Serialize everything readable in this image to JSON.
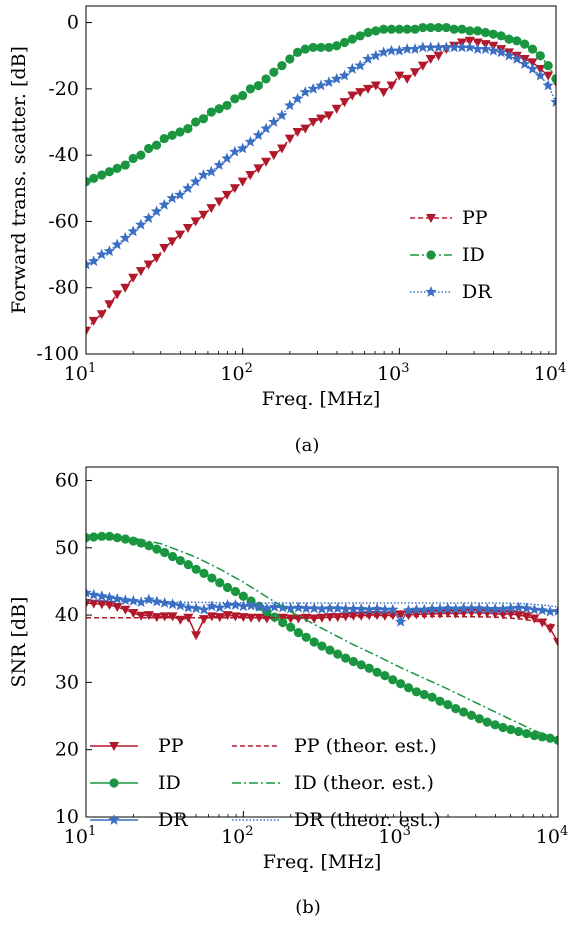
{
  "colors": {
    "PP": "#b2182b",
    "ID": "#1a9641",
    "DR": "#3a6fc4"
  },
  "chart_data": [
    {
      "type": "line",
      "caption": "(a)",
      "xlabel": "Freq. [MHz]",
      "ylabel": "Forward trans. scatter. [dB]",
      "xscale": "log",
      "xlim": [
        10,
        10000
      ],
      "ylim": [
        -100,
        5
      ],
      "xticks": [
        {
          "v": 10,
          "b": "10",
          "e": "1"
        },
        {
          "v": 100,
          "b": "10",
          "e": "2"
        },
        {
          "v": 1000,
          "b": "10",
          "e": "3"
        },
        {
          "v": 10000,
          "b": "10",
          "e": "4"
        }
      ],
      "yticks": [
        {
          "v": 0,
          "t": "0"
        },
        {
          "v": -20,
          "t": "-20"
        },
        {
          "v": -40,
          "t": "-40"
        },
        {
          "v": -60,
          "t": "-60"
        },
        {
          "v": -80,
          "t": "-80"
        },
        {
          "v": -100,
          "t": "-100"
        }
      ],
      "legend_position": "lower right",
      "series": [
        {
          "name": "PP",
          "color_key": "PP",
          "marker": "triangle-down",
          "dash": "5,3",
          "x": [
            10,
            11.2,
            12.6,
            14.1,
            15.8,
            17.8,
            20,
            22.4,
            25.1,
            28.2,
            31.6,
            35.5,
            39.8,
            44.7,
            50.1,
            56.2,
            63.1,
            70.8,
            79.4,
            89.1,
            100,
            112,
            126,
            141,
            158,
            178,
            200,
            224,
            251,
            282,
            316,
            355,
            398,
            447,
            501,
            562,
            631,
            708,
            794,
            891,
            1000,
            1122,
            1259,
            1413,
            1585,
            1778,
            1995,
            2239,
            2512,
            2818,
            3162,
            3548,
            3981,
            4467,
            5012,
            5623,
            6310,
            7079,
            7943,
            8913,
            10000
          ],
          "y": [
            -93,
            -90,
            -88,
            -85,
            -82,
            -80,
            -77,
            -75,
            -73,
            -71,
            -68,
            -66,
            -64,
            -62,
            -60,
            -58,
            -56,
            -54,
            -52,
            -50,
            -48,
            -46,
            -44,
            -42,
            -40,
            -38,
            -35,
            -33,
            -32,
            -30,
            -29,
            -28,
            -26,
            -24,
            -22,
            -21,
            -20,
            -19,
            -21,
            -19,
            -16,
            -17,
            -15,
            -13,
            -11,
            -10,
            -8,
            -7,
            -6,
            -5.5,
            -6,
            -6.5,
            -7,
            -8,
            -9,
            -10,
            -11,
            -12,
            -14,
            -16,
            -18
          ]
        },
        {
          "name": "ID",
          "color_key": "ID",
          "marker": "circle",
          "dash": "9,3,2,3",
          "x": [
            10,
            11.2,
            12.6,
            14.1,
            15.8,
            17.8,
            20,
            22.4,
            25.1,
            28.2,
            31.6,
            35.5,
            39.8,
            44.7,
            50.1,
            56.2,
            63.1,
            70.8,
            79.4,
            89.1,
            100,
            112,
            126,
            141,
            158,
            178,
            200,
            224,
            251,
            282,
            316,
            355,
            398,
            447,
            501,
            562,
            631,
            708,
            794,
            891,
            1000,
            1122,
            1259,
            1413,
            1585,
            1778,
            1995,
            2239,
            2512,
            2818,
            3162,
            3548,
            3981,
            4467,
            5012,
            5623,
            6310,
            7079,
            7943,
            8913,
            10000
          ],
          "y": [
            -48,
            -47,
            -46,
            -45,
            -44,
            -43,
            -41,
            -40,
            -38,
            -37,
            -35,
            -34,
            -33,
            -32,
            -30,
            -29,
            -27,
            -26,
            -25,
            -23,
            -22,
            -20,
            -19,
            -17,
            -15,
            -13,
            -11,
            -9,
            -8,
            -7.5,
            -7.5,
            -7.5,
            -7,
            -6,
            -5,
            -4,
            -3,
            -2.5,
            -2,
            -2,
            -2,
            -2,
            -2,
            -1.5,
            -1.5,
            -1.5,
            -1.5,
            -2,
            -2,
            -2.5,
            -2.5,
            -3,
            -3.5,
            -4,
            -5,
            -5.5,
            -6.5,
            -8,
            -10,
            -13,
            -17
          ]
        },
        {
          "name": "DR",
          "color_key": "DR",
          "marker": "star",
          "dash": "1.5,2",
          "x": [
            10,
            11.2,
            12.6,
            14.1,
            15.8,
            17.8,
            20,
            22.4,
            25.1,
            28.2,
            31.6,
            35.5,
            39.8,
            44.7,
            50.1,
            56.2,
            63.1,
            70.8,
            79.4,
            89.1,
            100,
            112,
            126,
            141,
            158,
            178,
            200,
            224,
            251,
            282,
            316,
            355,
            398,
            447,
            501,
            562,
            631,
            708,
            794,
            891,
            1000,
            1122,
            1259,
            1413,
            1585,
            1778,
            1995,
            2239,
            2512,
            2818,
            3162,
            3548,
            3981,
            4467,
            5012,
            5623,
            6310,
            7079,
            7943,
            8913,
            10000
          ],
          "y": [
            -73,
            -72,
            -70,
            -69,
            -67,
            -65,
            -63,
            -61,
            -59,
            -57,
            -55,
            -53,
            -52,
            -50,
            -48,
            -46,
            -45,
            -43,
            -41,
            -39,
            -38,
            -36,
            -34,
            -32,
            -30,
            -28,
            -25,
            -23,
            -21,
            -20,
            -19,
            -18,
            -17,
            -16,
            -14,
            -13,
            -11,
            -10,
            -9,
            -8.5,
            -8.5,
            -8,
            -8,
            -7.5,
            -7.5,
            -7.5,
            -7.5,
            -7.5,
            -7.5,
            -7.5,
            -8,
            -8,
            -8.5,
            -9,
            -10,
            -11,
            -12.5,
            -14,
            -16,
            -19,
            -24
          ]
        }
      ]
    },
    {
      "type": "line",
      "caption": "(b)",
      "xlabel": "Freq. [MHz]",
      "ylabel": "SNR [dB]",
      "xscale": "log",
      "xlim": [
        10,
        10000
      ],
      "ylim": [
        10,
        62
      ],
      "xticks": [
        {
          "v": 10,
          "b": "10",
          "e": "1"
        },
        {
          "v": 100,
          "b": "10",
          "e": "2"
        },
        {
          "v": 1000,
          "b": "10",
          "e": "3"
        },
        {
          "v": 10000,
          "b": "10",
          "e": "4"
        }
      ],
      "yticks": [
        {
          "v": 10,
          "t": "10"
        },
        {
          "v": 20,
          "t": "20"
        },
        {
          "v": 30,
          "t": "30"
        },
        {
          "v": 40,
          "t": "40"
        },
        {
          "v": 50,
          "t": "50"
        },
        {
          "v": 60,
          "t": "60"
        }
      ],
      "legend_position": "lower left",
      "series": [
        {
          "name": "PP",
          "color_key": "PP",
          "marker": "triangle-down",
          "dash": "",
          "x": [
            10,
            11.2,
            12.6,
            14.1,
            15.8,
            17.8,
            20,
            22.4,
            25.1,
            28.2,
            31.6,
            35.5,
            39.8,
            44.7,
            50.1,
            56.2,
            63.1,
            70.8,
            79.4,
            89.1,
            100,
            112,
            126,
            141,
            158,
            178,
            200,
            224,
            251,
            282,
            316,
            355,
            398,
            447,
            501,
            562,
            631,
            708,
            794,
            891,
            1000,
            1122,
            1259,
            1413,
            1585,
            1778,
            1995,
            2239,
            2512,
            2818,
            3162,
            3548,
            3981,
            4467,
            5012,
            5623,
            6310,
            7079,
            7943,
            8913,
            10000
          ],
          "y": [
            41.8,
            41.7,
            41.6,
            41.5,
            41.2,
            40.8,
            40.3,
            39.9,
            40.0,
            39.7,
            39.8,
            39.8,
            39.3,
            39.6,
            37.0,
            39.4,
            39.8,
            39.7,
            40.0,
            39.8,
            39.7,
            39.6,
            39.6,
            39.5,
            39.6,
            39.6,
            39.5,
            39.5,
            39.6,
            39.5,
            39.6,
            39.7,
            39.7,
            39.8,
            39.9,
            39.9,
            40.0,
            40.0,
            39.9,
            40.0,
            40.1,
            40.0,
            40.1,
            40.1,
            40.2,
            40.2,
            40.3,
            40.2,
            40.3,
            40.4,
            40.3,
            40.3,
            40.2,
            40.1,
            40.2,
            40.0,
            39.8,
            39.5,
            38.9,
            38.0,
            36.0
          ]
        },
        {
          "name": "ID",
          "color_key": "ID",
          "marker": "circle",
          "dash": "",
          "x": [
            10,
            11.2,
            12.6,
            14.1,
            15.8,
            17.8,
            20,
            22.4,
            25.1,
            28.2,
            31.6,
            35.5,
            39.8,
            44.7,
            50.1,
            56.2,
            63.1,
            70.8,
            79.4,
            89.1,
            100,
            112,
            126,
            141,
            158,
            178,
            200,
            224,
            251,
            282,
            316,
            355,
            398,
            447,
            501,
            562,
            631,
            708,
            794,
            891,
            1000,
            1122,
            1259,
            1413,
            1585,
            1778,
            1995,
            2239,
            2512,
            2818,
            3162,
            3548,
            3981,
            4467,
            5012,
            5623,
            6310,
            7079,
            7943,
            8913,
            10000
          ],
          "y": [
            51.5,
            51.6,
            51.7,
            51.7,
            51.5,
            51.3,
            51.0,
            50.7,
            50.3,
            49.8,
            49.3,
            48.7,
            48.1,
            47.5,
            46.8,
            46.2,
            45.5,
            44.8,
            44.1,
            43.5,
            42.8,
            42.1,
            41.3,
            40.5,
            39.7,
            38.9,
            38.2,
            37.4,
            36.7,
            36.0,
            35.4,
            34.8,
            34.2,
            33.6,
            33.1,
            32.6,
            32.1,
            31.5,
            31.0,
            30.4,
            29.8,
            29.2,
            28.6,
            28.2,
            27.8,
            27.2,
            26.7,
            26.1,
            25.6,
            25.1,
            24.6,
            24.1,
            23.7,
            23.3,
            23.0,
            22.7,
            22.4,
            22.1,
            21.9,
            21.7,
            21.4
          ]
        },
        {
          "name": "DR",
          "color_key": "DR",
          "marker": "star",
          "dash": "",
          "x": [
            10,
            11.2,
            12.6,
            14.1,
            15.8,
            17.8,
            20,
            22.4,
            25.1,
            28.2,
            31.6,
            35.5,
            39.8,
            44.7,
            50.1,
            56.2,
            63.1,
            70.8,
            79.4,
            89.1,
            100,
            112,
            126,
            141,
            158,
            178,
            200,
            224,
            251,
            282,
            316,
            355,
            398,
            447,
            501,
            562,
            631,
            708,
            794,
            891,
            1000,
            1122,
            1259,
            1413,
            1585,
            1778,
            1995,
            2239,
            2512,
            2818,
            3162,
            3548,
            3981,
            4467,
            5012,
            5623,
            6310,
            7079,
            7943,
            8913,
            10000
          ],
          "y": [
            43.3,
            43.0,
            42.8,
            42.6,
            42.4,
            42.2,
            42.1,
            41.9,
            42.3,
            42.0,
            41.8,
            41.6,
            41.4,
            41.1,
            41.0,
            40.8,
            41.3,
            41.1,
            41.5,
            41.5,
            41.3,
            41.4,
            41.2,
            41.0,
            41.2,
            41.1,
            41.0,
            41.1,
            41.0,
            41.0,
            40.9,
            41.0,
            41.0,
            40.9,
            40.9,
            40.9,
            40.8,
            40.9,
            40.8,
            40.8,
            39.0,
            40.7,
            40.8,
            40.8,
            40.9,
            40.9,
            41.0,
            40.9,
            41.0,
            41.0,
            41.0,
            40.9,
            40.9,
            40.9,
            41.0,
            41.1,
            41.0,
            40.8,
            40.7,
            40.5,
            40.6
          ]
        },
        {
          "name": "PP (theor. est.)",
          "color_key": "PP",
          "marker": "none",
          "dash": "5,3",
          "x": [
            10,
            20,
            50,
            100,
            200,
            500,
            1000,
            2000,
            4000,
            6000,
            8000,
            10000
          ],
          "y": [
            39.6,
            39.6,
            39.6,
            39.6,
            39.6,
            39.7,
            39.8,
            39.8,
            39.7,
            39.4,
            38.9,
            38.4
          ]
        },
        {
          "name": "ID (theor. est.)",
          "color_key": "ID",
          "marker": "none",
          "dash": "9,3,2,3",
          "x": [
            10,
            15,
            20,
            30,
            50,
            70,
            100,
            150,
            200,
            300,
            500,
            700,
            1000,
            2000,
            3000,
            5000,
            7000,
            10000
          ],
          "y": [
            51.4,
            51.5,
            51.4,
            50.6,
            48.6,
            46.9,
            44.9,
            42.3,
            40.5,
            38.3,
            35.6,
            34.0,
            32.2,
            29.0,
            27.0,
            24.5,
            22.9,
            21.5
          ]
        },
        {
          "name": "DR (theor. est.)",
          "color_key": "DR",
          "marker": "none",
          "dash": "1.5,2",
          "x": [
            10,
            20,
            50,
            100,
            200,
            500,
            1000,
            2000,
            4000,
            6000,
            8000,
            10000
          ],
          "y": [
            42.2,
            42.0,
            41.9,
            41.8,
            41.8,
            41.8,
            41.8,
            41.8,
            41.8,
            41.7,
            41.5,
            41.2
          ]
        }
      ]
    }
  ]
}
